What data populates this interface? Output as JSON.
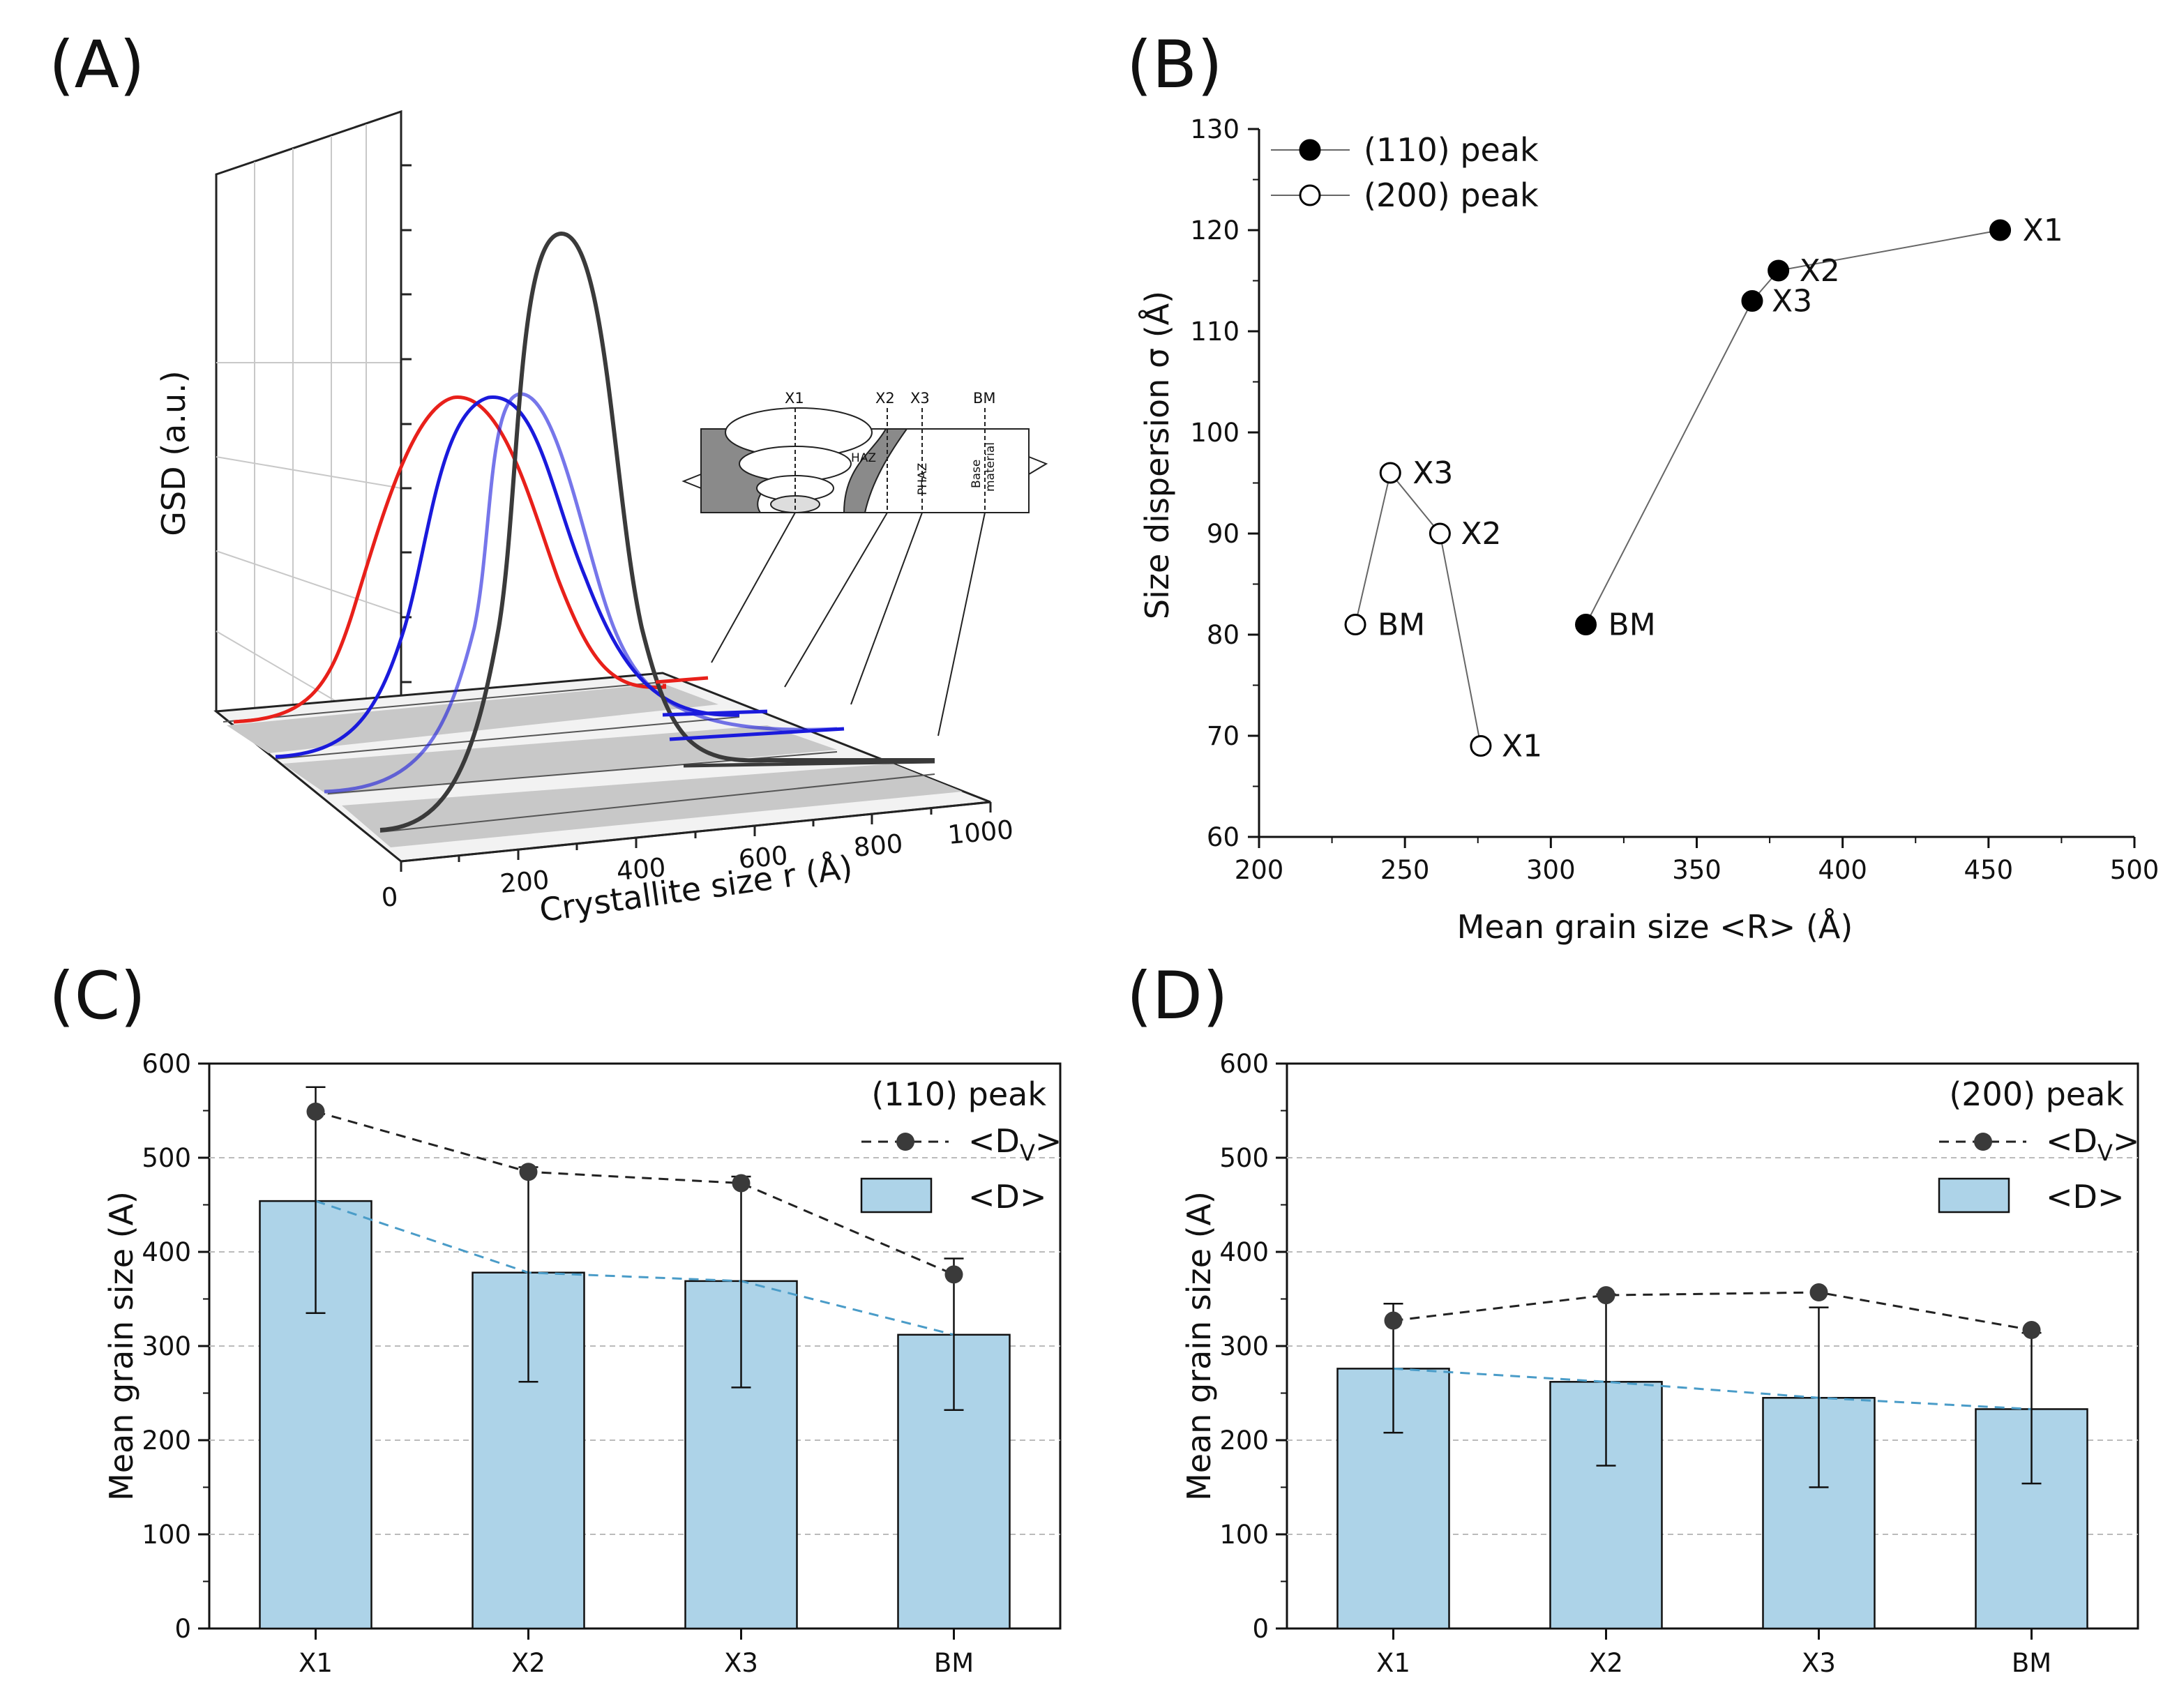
{
  "panels": {
    "A": "(A)",
    "B": "(B)",
    "C": "(C)",
    "D": "(D)"
  },
  "colors": {
    "red": "#e8201a",
    "blue": "#1a1adc",
    "dark": "#3a3a3a",
    "bar": "#add3e8",
    "trend": "#4a9cc8"
  },
  "chart_data": [
    {
      "panel": "A",
      "type": "line",
      "title": "",
      "ylabel": "GSD (a.u.)",
      "xlabel": "Crystallite size r (Å)",
      "x_ticks": [
        "0",
        "200",
        "400",
        "600",
        "800",
        "1000"
      ],
      "series": [
        {
          "name": "X1",
          "color": "red"
        },
        {
          "name": "X2",
          "color": "blue"
        },
        {
          "name": "X3",
          "color": "blue"
        },
        {
          "name": "BM",
          "color": "dark"
        }
      ],
      "inset": {
        "labels": [
          "X1",
          "X2",
          "X3",
          "BM"
        ],
        "zones": [
          "HAZ",
          "PHAZ",
          "Base",
          "material"
        ]
      }
    },
    {
      "panel": "B",
      "type": "scatter",
      "xlabel": "Mean grain size <R> (Å)",
      "ylabel": "Size dispersion σ (Å)",
      "xlim": [
        200,
        500
      ],
      "ylim": [
        60,
        130
      ],
      "x_ticks": [
        200,
        250,
        300,
        350,
        400,
        450,
        500
      ],
      "y_ticks": [
        60,
        70,
        80,
        90,
        100,
        110,
        120,
        130
      ],
      "series": [
        {
          "name": "(110) peak",
          "filled": true,
          "points": [
            {
              "label": "BM",
              "x": 312,
              "y": 81
            },
            {
              "label": "X3",
              "x": 369,
              "y": 113
            },
            {
              "label": "X2",
              "x": 378,
              "y": 116
            },
            {
              "label": "X1",
              "x": 454,
              "y": 120
            }
          ]
        },
        {
          "name": "(200) peak",
          "filled": false,
          "points": [
            {
              "label": "BM",
              "x": 233,
              "y": 81
            },
            {
              "label": "X3",
              "x": 245,
              "y": 96
            },
            {
              "label": "X2",
              "x": 262,
              "y": 90
            },
            {
              "label": "X1",
              "x": 276,
              "y": 69
            }
          ]
        }
      ]
    },
    {
      "panel": "C",
      "type": "bar",
      "legend_title": "(110) peak",
      "ylabel": "Mean grain size (A)",
      "categories": [
        "X1",
        "X2",
        "X3",
        "BM"
      ],
      "ylim": [
        0,
        600
      ],
      "y_ticks": [
        0,
        100,
        200,
        300,
        400,
        500,
        600
      ],
      "series": [
        {
          "name": "<D>",
          "kind": "bar",
          "values": [
            454,
            378,
            369,
            312
          ],
          "err_low": [
            335,
            262,
            256,
            232
          ],
          "err_high": [
            575,
            490,
            480,
            393
          ]
        },
        {
          "name": "<DV>",
          "kind": "dashed-line",
          "values": [
            549,
            485,
            473,
            376
          ]
        }
      ]
    },
    {
      "panel": "D",
      "type": "bar",
      "legend_title": "(200) peak",
      "ylabel": "Mean grain size (A)",
      "categories": [
        "X1",
        "X2",
        "X3",
        "BM"
      ],
      "ylim": [
        0,
        600
      ],
      "y_ticks": [
        0,
        100,
        200,
        300,
        400,
        500,
        600
      ],
      "series": [
        {
          "name": "<D>",
          "kind": "bar",
          "values": [
            276,
            262,
            245,
            233
          ],
          "err_low": [
            208,
            173,
            150,
            154
          ],
          "err_high": [
            345,
            355,
            341,
            314
          ]
        },
        {
          "name": "<DV>",
          "kind": "dashed-line",
          "values": [
            327,
            354,
            357,
            317
          ]
        }
      ]
    }
  ]
}
